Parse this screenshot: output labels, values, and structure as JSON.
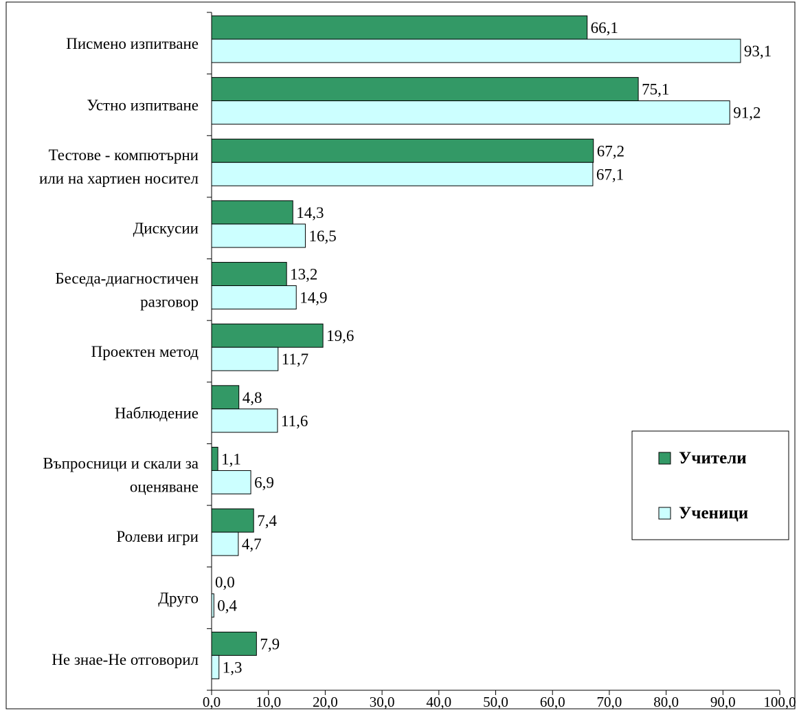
{
  "chart_data": {
    "type": "bar",
    "orientation": "horizontal",
    "categories": [
      [
        "Писмено изпитване"
      ],
      [
        "Устно изпитване"
      ],
      [
        "Тестове - компютърни",
        "или на хартиен носител"
      ],
      [
        "Дискусии"
      ],
      [
        "Беседа-диагностичен",
        "разговор"
      ],
      [
        "Проектен метод"
      ],
      [
        "Наблюдение"
      ],
      [
        "Въпросници и скали за",
        "оценяване"
      ],
      [
        "Ролеви игри"
      ],
      [
        "Друго"
      ],
      [
        "Не знае-Не отговорил"
      ]
    ],
    "series": [
      {
        "name": "Учители",
        "color": "#339966",
        "values": [
          66.1,
          75.1,
          67.2,
          14.3,
          13.2,
          19.6,
          4.8,
          1.1,
          7.4,
          0.0,
          7.9
        ],
        "labels": [
          "66,1",
          "75,1",
          "67,2",
          "14,3",
          "13,2",
          "19,6",
          "4,8",
          "1,1",
          "7,4",
          "0,0",
          "7,9"
        ]
      },
      {
        "name": "Ученици",
        "color": "#ccffff",
        "values": [
          93.1,
          91.2,
          67.1,
          16.5,
          14.9,
          11.7,
          11.6,
          6.9,
          4.7,
          0.4,
          1.3
        ],
        "labels": [
          "93,1",
          "91,2",
          "67,1",
          "16,5",
          "14,9",
          "11,7",
          "11,6",
          "6,9",
          "4,7",
          "0,4",
          "1,3"
        ]
      }
    ],
    "xlim": [
      0,
      100
    ],
    "xticks": [
      0,
      10,
      20,
      30,
      40,
      50,
      60,
      70,
      80,
      90,
      100
    ],
    "xtick_labels": [
      "0,0",
      "10,0",
      "20,0",
      "30,0",
      "40,0",
      "50,0",
      "60,0",
      "70,0",
      "80,0",
      "90,0",
      "100,0"
    ],
    "grid": false,
    "legend_position": "right",
    "title": "",
    "xlabel": "",
    "ylabel": ""
  }
}
